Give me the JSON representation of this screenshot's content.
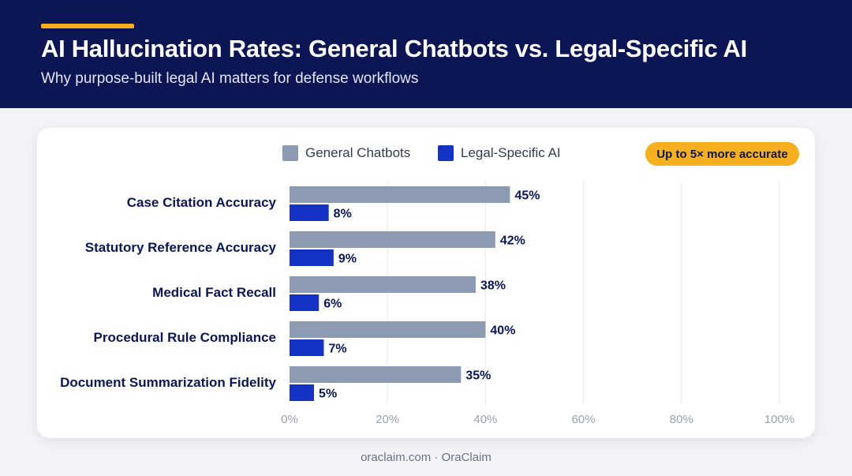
{
  "header": {
    "title": "AI Hallucination Rates: General Chatbots vs. Legal-Specific AI",
    "subtitle": "Why purpose-built legal AI matters for defense workflows"
  },
  "badge": "Up to 5× more accurate",
  "footer": "oraclaim.com · OraClaim",
  "colors": {
    "header_bg": "#0c1654",
    "accent": "#f6b01f",
    "general": "#8c9ab2",
    "legal": "#1433c4"
  },
  "chart_data": {
    "type": "bar",
    "orientation": "horizontal",
    "categories": [
      "Case Citation Accuracy",
      "Statutory Reference Accuracy",
      "Medical Fact Recall",
      "Procedural Rule Compliance",
      "Document Summarization Fidelity"
    ],
    "series": [
      {
        "name": "General Chatbots",
        "values": [
          45,
          42,
          38,
          40,
          35
        ],
        "color": "#8c9ab2"
      },
      {
        "name": "Legal-Specific AI",
        "values": [
          8,
          9,
          6,
          7,
          5
        ],
        "color": "#1433c4"
      }
    ],
    "xlim": [
      0,
      100
    ],
    "x_ticks": [
      "0%",
      "20%",
      "40%",
      "60%",
      "80%",
      "100%"
    ],
    "value_suffix": "%",
    "grid": true,
    "legend_position": "top"
  }
}
